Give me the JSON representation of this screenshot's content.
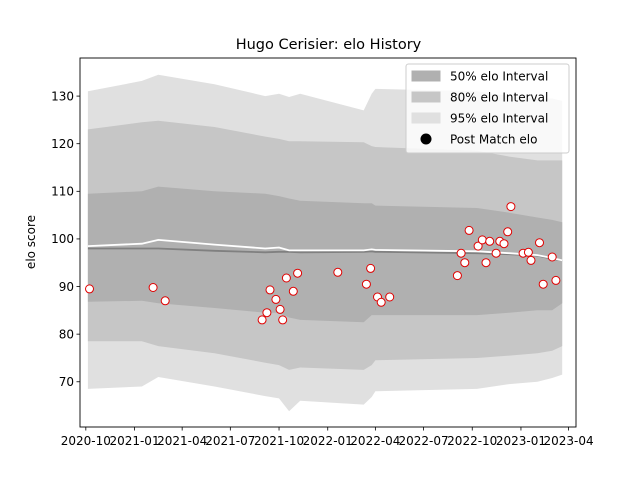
{
  "chart_data": {
    "type": "area",
    "title": "Hugo Cerisier: elo History",
    "xlabel": "",
    "ylabel": "elo score",
    "xlim": [
      "2020-09-20",
      "2023-04-15"
    ],
    "ylim": [
      60.5,
      138
    ],
    "grid": false,
    "legend_position": "top-right",
    "x_ticks": [
      {
        "date": "2020-10-01",
        "label": "2020-10"
      },
      {
        "date": "2021-01-01",
        "label": "2021-01"
      },
      {
        "date": "2021-04-01",
        "label": "2021-04"
      },
      {
        "date": "2021-07-01",
        "label": "2021-07"
      },
      {
        "date": "2021-10-01",
        "label": "2021-10"
      },
      {
        "date": "2022-01-01",
        "label": "2022-01"
      },
      {
        "date": "2022-04-01",
        "label": "2022-04"
      },
      {
        "date": "2022-07-01",
        "label": "2022-07"
      },
      {
        "date": "2022-10-01",
        "label": "2022-10"
      },
      {
        "date": "2023-01-01",
        "label": "2023-01"
      },
      {
        "date": "2023-04-01",
        "label": "2023-04"
      }
    ],
    "y_ticks": [
      70,
      80,
      90,
      100,
      110,
      120,
      130
    ],
    "colors": {
      "band_50": "#b0b0b0",
      "band_80": "#c6c6c6",
      "band_95": "#e0e0e0",
      "mean_line": "#808080",
      "median_line": "#ffffff",
      "point_edge": "#e00000",
      "point_fill": "#ffffff"
    },
    "legend": [
      {
        "label": "50% elo Interval",
        "kind": "band_50"
      },
      {
        "label": "80% elo Interval",
        "kind": "band_80"
      },
      {
        "label": "95% elo Interval",
        "kind": "band_95"
      },
      {
        "label": "Post Match elo",
        "kind": "point"
      }
    ],
    "bands": {
      "dates": [
        "2020-10-05",
        "2021-01-15",
        "2021-02-15",
        "2021-06-01",
        "2021-09-05",
        "2021-10-01",
        "2021-10-20",
        "2021-11-10",
        "2022-03-10",
        "2022-03-25",
        "2022-04-01",
        "2022-10-10",
        "2022-12-10",
        "2023-02-01",
        "2023-03-01",
        "2023-03-20"
      ],
      "p95_low": [
        68.5,
        69.0,
        71.0,
        69.0,
        67.0,
        66.5,
        63.8,
        66.0,
        65.2,
        66.8,
        68.0,
        68.5,
        69.5,
        70.0,
        70.8,
        71.5
      ],
      "p80_low": [
        78.5,
        78.5,
        77.5,
        76.0,
        74.0,
        73.5,
        72.5,
        73.0,
        72.5,
        73.5,
        74.5,
        75.0,
        75.5,
        76.0,
        76.5,
        77.5
      ],
      "p50_low": [
        86.8,
        87.0,
        86.5,
        85.5,
        84.5,
        84.5,
        83.5,
        83.0,
        82.5,
        84.0,
        84.0,
        84.0,
        84.5,
        85.0,
        85.0,
        86.5
      ],
      "mean": [
        98.0,
        98.0,
        98.0,
        97.5,
        97.2,
        97.3,
        97.3,
        97.2,
        97.3,
        97.4,
        97.3,
        97.0,
        96.8,
        96.5,
        95.8,
        95.5
      ],
      "median": [
        98.5,
        99.0,
        99.8,
        98.8,
        98.0,
        98.2,
        97.6,
        97.6,
        97.6,
        97.8,
        97.7,
        97.4,
        97.0,
        96.6,
        96.0,
        95.5
      ],
      "p50_high": [
        109.5,
        110.0,
        111.0,
        110.0,
        109.5,
        109.0,
        108.5,
        108.0,
        107.5,
        107.5,
        107.0,
        106.5,
        105.5,
        104.5,
        104.0,
        103.5
      ],
      "p80_high": [
        123.0,
        124.5,
        124.8,
        123.5,
        121.5,
        121.0,
        120.5,
        120.5,
        120.3,
        119.5,
        119.3,
        118.5,
        117.3,
        116.5,
        116.5,
        116.5
      ],
      "p95_high": [
        131.0,
        133.2,
        134.5,
        132.5,
        130.0,
        130.5,
        129.8,
        130.5,
        127.0,
        130.5,
        131.5,
        131.0,
        130.0,
        129.5,
        129.5,
        129.0
      ]
    },
    "points": [
      {
        "date": "2020-10-08",
        "elo": 89.5
      },
      {
        "date": "2021-02-05",
        "elo": 89.8
      },
      {
        "date": "2021-02-28",
        "elo": 87.0
      },
      {
        "date": "2021-08-30",
        "elo": 83.0
      },
      {
        "date": "2021-09-08",
        "elo": 84.5
      },
      {
        "date": "2021-09-14",
        "elo": 89.3
      },
      {
        "date": "2021-09-25",
        "elo": 87.3
      },
      {
        "date": "2021-10-03",
        "elo": 85.2
      },
      {
        "date": "2021-10-08",
        "elo": 83.0
      },
      {
        "date": "2021-10-15",
        "elo": 91.8
      },
      {
        "date": "2021-10-28",
        "elo": 89.0
      },
      {
        "date": "2021-11-05",
        "elo": 92.8
      },
      {
        "date": "2022-01-20",
        "elo": 93.0
      },
      {
        "date": "2022-03-15",
        "elo": 90.5
      },
      {
        "date": "2022-03-23",
        "elo": 93.8
      },
      {
        "date": "2022-04-05",
        "elo": 87.8
      },
      {
        "date": "2022-04-12",
        "elo": 86.7
      },
      {
        "date": "2022-04-28",
        "elo": 87.8
      },
      {
        "date": "2022-09-03",
        "elo": 92.3
      },
      {
        "date": "2022-09-10",
        "elo": 97.0
      },
      {
        "date": "2022-09-17",
        "elo": 95.0
      },
      {
        "date": "2022-09-25",
        "elo": 101.8
      },
      {
        "date": "2022-10-12",
        "elo": 98.5
      },
      {
        "date": "2022-10-20",
        "elo": 99.8
      },
      {
        "date": "2022-10-27",
        "elo": 95.0
      },
      {
        "date": "2022-11-03",
        "elo": 99.5
      },
      {
        "date": "2022-11-15",
        "elo": 97.0
      },
      {
        "date": "2022-11-22",
        "elo": 99.5
      },
      {
        "date": "2022-11-30",
        "elo": 99.0
      },
      {
        "date": "2022-12-07",
        "elo": 101.5
      },
      {
        "date": "2022-12-13",
        "elo": 106.8
      },
      {
        "date": "2023-01-05",
        "elo": 97.0
      },
      {
        "date": "2023-01-15",
        "elo": 97.2
      },
      {
        "date": "2023-01-20",
        "elo": 95.5
      },
      {
        "date": "2023-02-05",
        "elo": 99.2
      },
      {
        "date": "2023-02-12",
        "elo": 90.5
      },
      {
        "date": "2023-03-01",
        "elo": 96.2
      },
      {
        "date": "2023-03-08",
        "elo": 91.3
      }
    ]
  }
}
